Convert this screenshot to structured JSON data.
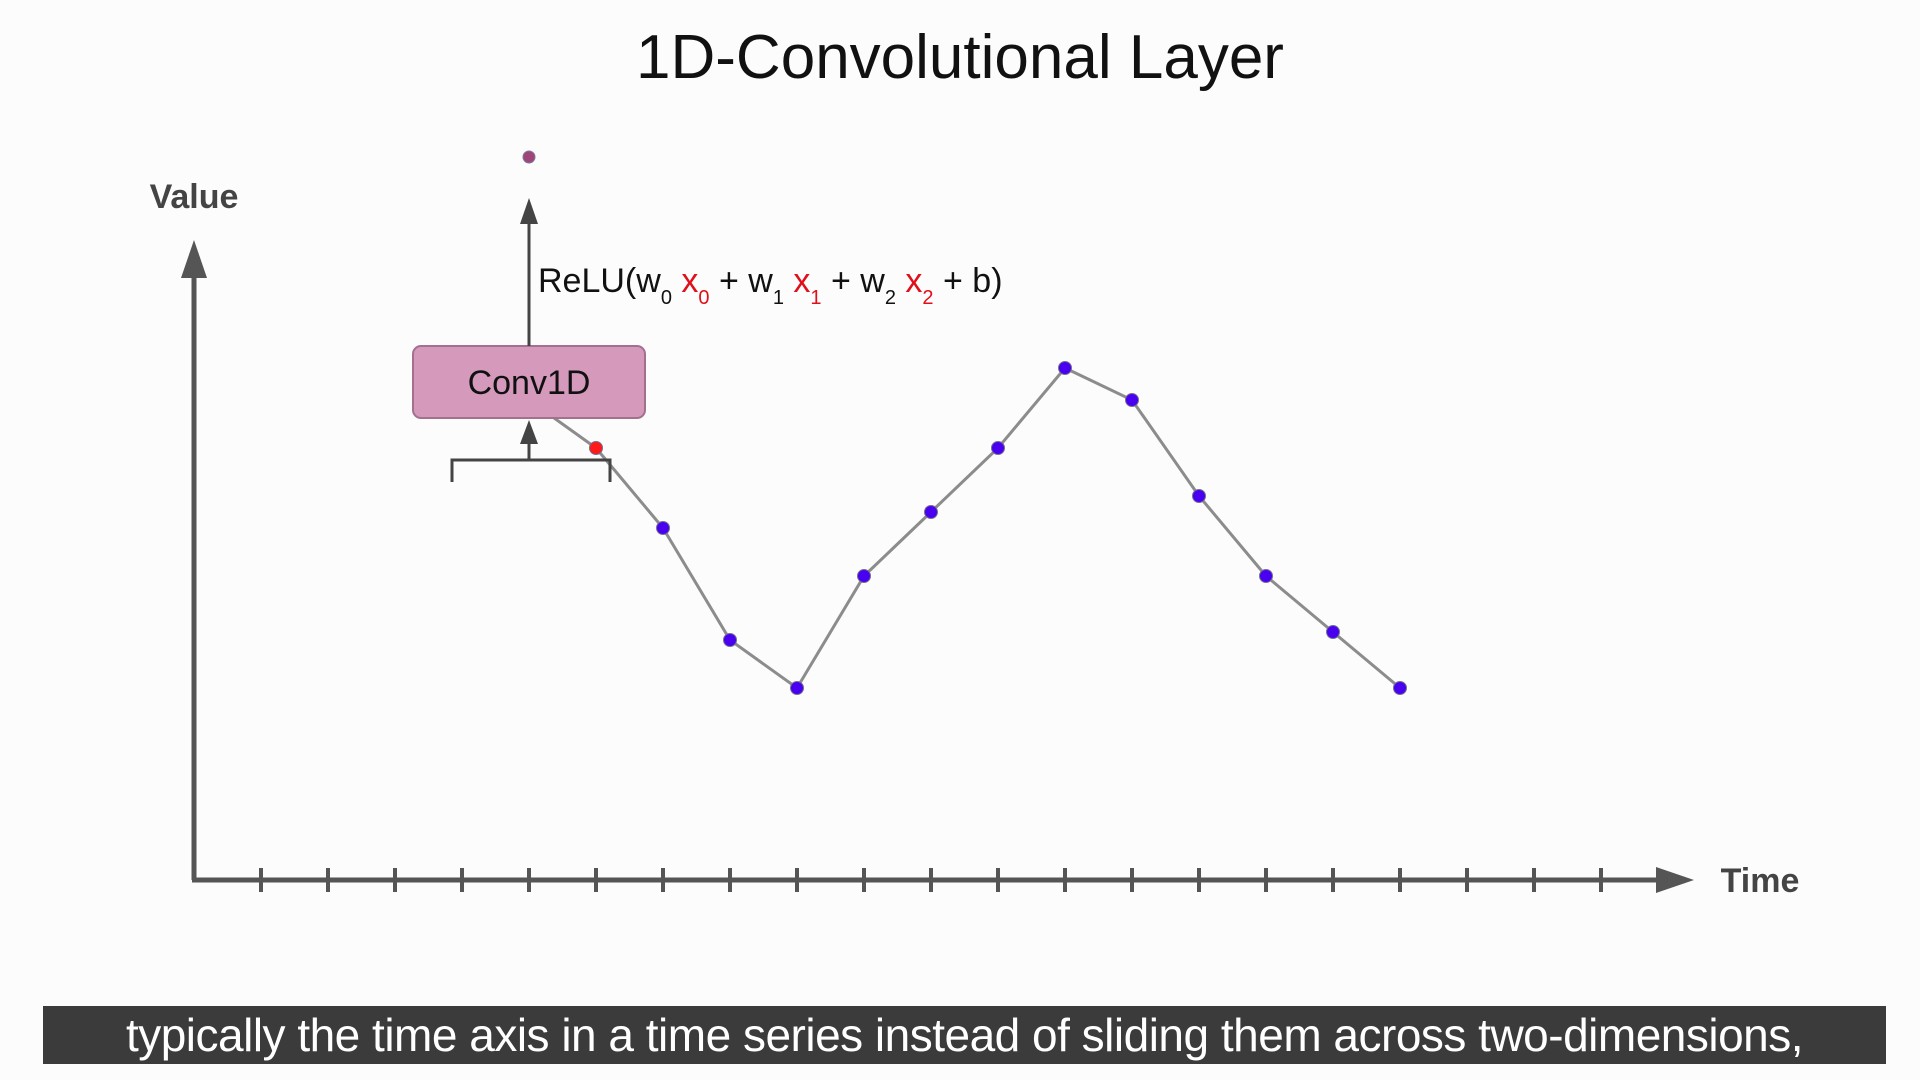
{
  "title": "1D-Convolutional Layer",
  "y_axis_label": "Value",
  "x_axis_label": "Time",
  "conv_box_label": "Conv1D",
  "formula": {
    "prefix": "ReLU(",
    "terms": [
      {
        "weight": "w",
        "weight_sub": "0",
        "input": "x",
        "input_sub": "0",
        "joiner": " + "
      },
      {
        "weight": "w",
        "weight_sub": "1",
        "input": "x",
        "input_sub": "1",
        "joiner": " + "
      },
      {
        "weight": "w",
        "weight_sub": "2",
        "input": "x",
        "input_sub": "2",
        "joiner": " + "
      }
    ],
    "suffix": "b)"
  },
  "caption": "typically the time axis in a time series instead of sliding them across two-dimensions,",
  "chart_data": {
    "type": "line",
    "tick_count": 21,
    "points": [
      {
        "t": 4,
        "v": 6.2,
        "in_window": true
      },
      {
        "t": 5,
        "v": 6.0,
        "in_window": true
      },
      {
        "t": 6,
        "v": 5.4,
        "in_window": true
      },
      {
        "t": 7,
        "v": 4.4,
        "in_window": false
      },
      {
        "t": 8,
        "v": 3.0,
        "in_window": false
      },
      {
        "t": 9,
        "v": 2.4,
        "in_window": false
      },
      {
        "t": 10,
        "v": 3.8,
        "in_window": false
      },
      {
        "t": 11,
        "v": 4.6,
        "in_window": false
      },
      {
        "t": 12,
        "v": 5.4,
        "in_window": false
      },
      {
        "t": 13,
        "v": 6.4,
        "in_window": false
      },
      {
        "t": 14,
        "v": 6.0,
        "in_window": false
      },
      {
        "t": 15,
        "v": 4.8,
        "in_window": false
      },
      {
        "t": 16,
        "v": 3.8,
        "in_window": false
      },
      {
        "t": 17,
        "v": 3.1,
        "in_window": false
      },
      {
        "t": 18,
        "v": 2.4,
        "in_window": false
      }
    ],
    "output_point": {
      "t": 5
    }
  },
  "colors": {
    "window_point": "#ff1a1a",
    "series_point": "#4a00f0",
    "line": "#8c8c8c",
    "axis": "#555555",
    "conv_box_fill": "#d499bb",
    "conv_box_stroke": "#a3708e",
    "output_point": "#a0457a",
    "input_highlight": "#e0101a"
  }
}
